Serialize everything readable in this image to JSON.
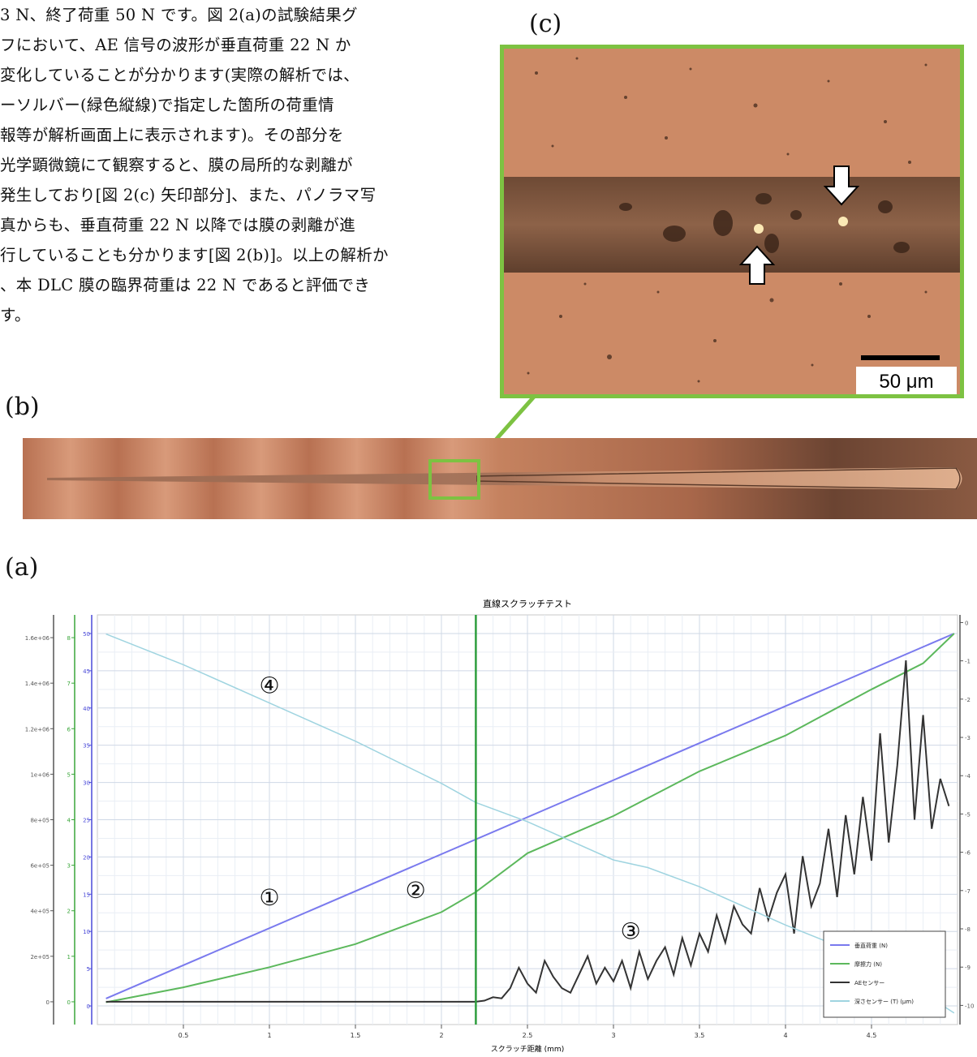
{
  "body_text": [
    "3 N、終了荷重 50 N です。図 2(a)の試験結果グ",
    "フにおいて、AE 信号の波形が垂直荷重 22 N か",
    "変化していることが分かります(実際の解析では、",
    "ーソルバー(緑色縦線)で指定した箇所の荷重情",
    "報等が解析画面上に表示されます)。その部分を",
    "光学顕微鏡にて観察すると、膜の局所的な剥離が",
    "発生しており[図 2(c) 矢印部分]、また、パノラマ写",
    "真からも、垂直荷重 22 N 以降では膜の剥離が進",
    "行していることも分かります[図 2(b)]。以上の解析か",
    "、本 DLC 膜の臨界荷重は 22 N であると評価でき",
    "す。"
  ],
  "panels": {
    "a": "(a)",
    "b": "(b)",
    "c": "(c)"
  },
  "micrograph": {
    "scale_bar_label": "50 μm"
  },
  "colors": {
    "frame": "#7dc242",
    "normal_load": "#7a7aee",
    "friction": "#5cb85c",
    "ae": "#333333",
    "depth": "#9fd4e0",
    "cursor": "#2e9e3e"
  },
  "chart_data": {
    "type": "line",
    "title": "直線スクラッチテスト",
    "xlabel": "スクラッチ距離 (mm)",
    "xlim": [
      0,
      5.0
    ],
    "x_ticks": [
      "0.5",
      "1",
      "1.5",
      "2",
      "2.5",
      "3",
      "3.5",
      "4",
      "4.5"
    ],
    "y_axes": [
      {
        "ylim": [
          -100000,
          1700000
        ],
        "ticks": [
          "0",
          "2e+05",
          "4e+05",
          "6e+05",
          "8e+05",
          "1e+06",
          "1.2e+06",
          "1.4e+06",
          "1.6e+06"
        ]
      },
      {
        "ylim": [
          -0.5,
          8.5
        ],
        "ticks": [
          "0",
          "1",
          "2",
          "3",
          "4",
          "5",
          "6",
          "7",
          "8"
        ]
      },
      {
        "ylim": [
          -2.5,
          52.5
        ],
        "ticks": [
          "0",
          "5",
          "10",
          "15",
          "20",
          "25",
          "30",
          "35",
          "40",
          "45",
          "50"
        ]
      },
      {
        "ylim": [
          -10.5,
          0.2
        ],
        "ticks": [
          "0",
          "-1",
          "-2",
          "-3",
          "-4",
          "-5",
          "-6",
          "-7",
          "-8",
          "-9",
          "-10"
        ]
      }
    ],
    "cursor_x": 2.2,
    "series": [
      {
        "name": "垂直荷重 (N)",
        "marker": "①",
        "x": [
          0.05,
          4.98
        ],
        "y": [
          1,
          50
        ]
      },
      {
        "name": "摩擦力 (N)",
        "marker": "②",
        "x": [
          0.05,
          0.5,
          1.0,
          1.5,
          2.0,
          2.2,
          2.5,
          3.0,
          3.5,
          4.0,
          4.5,
          4.8,
          4.98
        ],
        "y": [
          0.5,
          2.5,
          5.2,
          8.3,
          12.6,
          15.3,
          20.5,
          25.5,
          31.5,
          36.3,
          42.5,
          46.0,
          50.0
        ]
      },
      {
        "name": "AEセンサー",
        "marker": "③",
        "x": [
          0.05,
          2.2,
          2.25,
          2.3,
          2.35,
          2.4,
          2.45,
          2.5,
          2.55,
          2.6,
          2.65,
          2.7,
          2.75,
          2.8,
          2.85,
          2.9,
          2.95,
          3.0,
          3.05,
          3.1,
          3.15,
          3.2,
          3.25,
          3.3,
          3.35,
          3.4,
          3.45,
          3.5,
          3.55,
          3.6,
          3.65,
          3.7,
          3.75,
          3.8,
          3.85,
          3.9,
          3.95,
          4.0,
          4.05,
          4.1,
          4.15,
          4.2,
          4.25,
          4.3,
          4.35,
          4.4,
          4.45,
          4.5,
          4.55,
          4.6,
          4.65,
          4.7,
          4.75,
          4.8,
          4.85,
          4.9,
          4.95
        ],
        "y": [
          0,
          0,
          5000,
          20000,
          15000,
          60000,
          150000,
          80000,
          40000,
          180000,
          110000,
          60000,
          40000,
          120000,
          200000,
          80000,
          150000,
          90000,
          180000,
          60000,
          220000,
          100000,
          180000,
          240000,
          120000,
          280000,
          160000,
          300000,
          220000,
          380000,
          260000,
          420000,
          340000,
          300000,
          500000,
          360000,
          480000,
          560000,
          300000,
          640000,
          420000,
          520000,
          760000,
          460000,
          820000,
          560000,
          900000,
          620000,
          1180000,
          700000,
          1040000,
          1500000,
          800000,
          1260000,
          760000,
          980000,
          860000
        ]
      },
      {
        "name": "深さセンサー (T) (μm)",
        "marker": "④",
        "x": [
          0.05,
          0.5,
          1.0,
          1.5,
          2.0,
          2.2,
          2.5,
          3.0,
          3.2,
          3.5,
          4.0,
          4.5,
          4.98
        ],
        "y": [
          -0.3,
          -1.1,
          -2.1,
          -3.1,
          -4.2,
          -4.7,
          -5.2,
          -6.2,
          -6.4,
          -6.9,
          -7.9,
          -8.8,
          -10.2
        ]
      }
    ]
  }
}
